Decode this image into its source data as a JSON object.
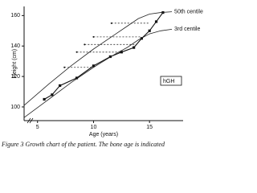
{
  "chart_data": {
    "type": "line",
    "xlabel": "Age (years)",
    "ylabel": "Height (cm)",
    "caption": "Figure 3   Growth chart of the patient. The bone age is indicated",
    "annotation": "hGH",
    "xlim": [
      3.8,
      18
    ],
    "ylim": [
      91,
      166
    ],
    "xticks": [
      5,
      10,
      15
    ],
    "yticks": [
      100,
      120,
      140,
      160
    ],
    "series": [
      {
        "color": "#111111",
        "marker": true,
        "x": [
          5.6,
          6.3,
          7.0,
          8.5,
          10.0,
          11.5,
          12.5,
          13.6,
          14.3,
          15.0,
          15.6,
          16.2
        ],
        "values": [
          105,
          108,
          114,
          119,
          127,
          133,
          136,
          139,
          145,
          150,
          156,
          162
        ]
      },
      {
        "name": "50th centile",
        "color": "#222222",
        "marker": false,
        "x": [
          3.8,
          6,
          8,
          10,
          12,
          13,
          14,
          15,
          16,
          17
        ],
        "values": [
          101,
          115,
          127,
          138,
          148,
          153,
          158,
          161,
          162,
          162.5
        ]
      },
      {
        "name": "3rd centile",
        "color": "#222222",
        "marker": false,
        "x": [
          3.8,
          6,
          8,
          10,
          12,
          13,
          14,
          15,
          16,
          17
        ],
        "values": [
          93,
          105,
          116,
          126,
          135,
          139,
          144,
          148,
          150,
          151
        ]
      }
    ],
    "bone_age": [
      {
        "height": 155,
        "x": [
          11.6,
          15.0
        ]
      },
      {
        "height": 146,
        "x": [
          10.0,
          14.3
        ]
      },
      {
        "height": 141,
        "x": [
          9.2,
          13.8
        ]
      },
      {
        "height": 136,
        "x": [
          8.5,
          12.5
        ]
      },
      {
        "height": 126,
        "x": [
          7.4,
          10.0
        ]
      }
    ]
  }
}
